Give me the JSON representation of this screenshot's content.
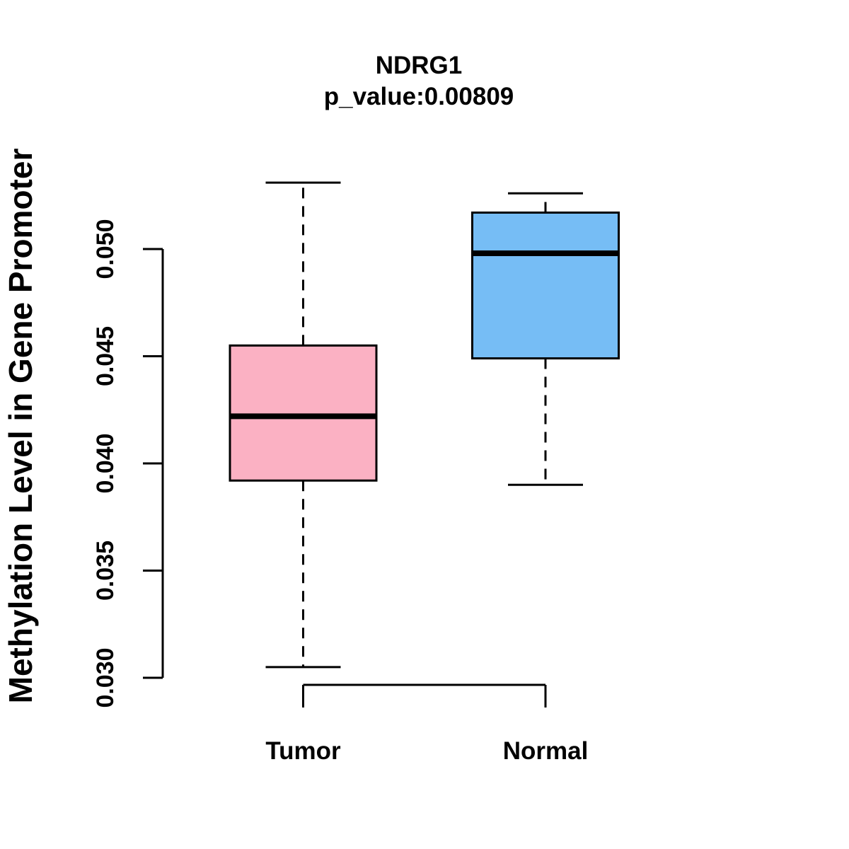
{
  "page": {
    "background": "#FFFFFF",
    "text_color": "#000000"
  },
  "chart_data": {
    "type": "boxplot",
    "title": "NDRG1",
    "subtitle": "p_value:0.00809",
    "ylabel": "Methylation Level in Gene Promoter",
    "xlabel": "",
    "categories": [
      "Tumor",
      "Normal"
    ],
    "series": [
      {
        "name": "Tumor",
        "min": 0.0305,
        "q1": 0.0392,
        "median": 0.0422,
        "q3": 0.0455,
        "max": 0.0531,
        "fill": "#FBB1C3"
      },
      {
        "name": "Normal",
        "min": 0.039,
        "q1": 0.0449,
        "median": 0.0498,
        "q3": 0.0517,
        "max": 0.0526,
        "fill": "#76BDF5"
      }
    ],
    "yticks": [
      {
        "label": "0.030",
        "value": 0.03
      },
      {
        "label": "0.035",
        "value": 0.035
      },
      {
        "label": "0.040",
        "value": 0.04
      },
      {
        "label": "0.045",
        "value": 0.045
      },
      {
        "label": "0.050",
        "value": 0.05
      }
    ],
    "ylim": [
      0.03,
      0.05
    ],
    "grid": false,
    "legend": null,
    "whisker_style": "dashed",
    "box_border_color": "#000000",
    "median_color": "#000000",
    "axis_color": "#000000"
  }
}
